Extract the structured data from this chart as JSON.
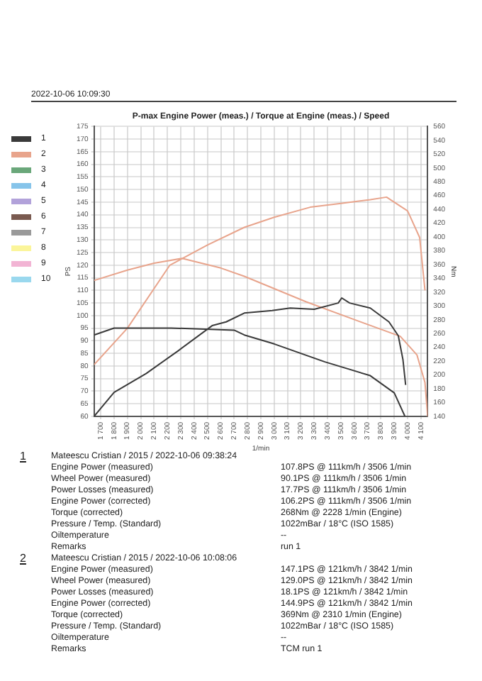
{
  "chart_data": {
    "type": "line",
    "title": "P-max Engine Power (meas.) / Torque at Engine (meas.) / Speed",
    "xlabel": "1/min",
    "ylabel": "PS",
    "y2label": "Nm",
    "xlim": [
      1650,
      4150
    ],
    "xticks": [
      {
        "value": 1700,
        "label": "1 700"
      },
      {
        "value": 1800,
        "label": "1 800"
      },
      {
        "value": 1900,
        "label": "1 900"
      },
      {
        "value": 2000,
        "label": "2 000"
      },
      {
        "value": 2100,
        "label": "2 100"
      },
      {
        "value": 2200,
        "label": "2 200"
      },
      {
        "value": 2300,
        "label": "2 300"
      },
      {
        "value": 2400,
        "label": "2 400"
      },
      {
        "value": 2500,
        "label": "2 500"
      },
      {
        "value": 2600,
        "label": "2 600"
      },
      {
        "value": 2700,
        "label": "2 700"
      },
      {
        "value": 2800,
        "label": "2 800"
      },
      {
        "value": 2900,
        "label": "2 900"
      },
      {
        "value": 3000,
        "label": "3 000"
      },
      {
        "value": 3100,
        "label": "3 100"
      },
      {
        "value": 3200,
        "label": "3 200"
      },
      {
        "value": 3300,
        "label": "3 300"
      },
      {
        "value": 3400,
        "label": "3 400"
      },
      {
        "value": 3500,
        "label": "3 500"
      },
      {
        "value": 3600,
        "label": "3 600"
      },
      {
        "value": 3700,
        "label": "3 700"
      },
      {
        "value": 3800,
        "label": "3 800"
      },
      {
        "value": 3900,
        "label": "3 900"
      },
      {
        "value": 4000,
        "label": "4 000"
      },
      {
        "value": 4100,
        "label": "4 100"
      }
    ],
    "ylim": [
      60,
      175
    ],
    "yticks": [
      60,
      65,
      70,
      75,
      80,
      85,
      90,
      95,
      100,
      105,
      110,
      115,
      120,
      125,
      130,
      135,
      140,
      145,
      150,
      155,
      160,
      165,
      170,
      175
    ],
    "y2lim": [
      140,
      560
    ],
    "y2ticks": [
      140,
      160,
      180,
      200,
      220,
      240,
      260,
      280,
      300,
      320,
      340,
      360,
      380,
      400,
      420,
      440,
      460,
      480,
      500,
      520,
      540,
      560
    ],
    "grid": true,
    "legend": "left",
    "marker": "none",
    "line_style": "solid",
    "series": [
      {
        "name": "1",
        "color": "#3a3a3a",
        "x": [
          1650,
          1800,
          2040,
          2280,
          2535,
          2640,
          2776,
          2985,
          3120,
          3300,
          3480,
          3506,
          3565,
          3720,
          3860,
          3930,
          3965,
          3985
        ],
        "values": [
          60,
          69.5,
          77,
          86,
          96,
          97.5,
          101,
          102,
          103,
          102.5,
          105,
          107,
          105,
          103,
          97.5,
          92,
          82.5,
          72.5
        ]
      },
      {
        "color": "#3a3a3a",
        "axis": "y2",
        "x": [
          1650,
          1800,
          2228,
          2700,
          2776,
          3000,
          3380,
          3720,
          3900,
          3980
        ],
        "values": [
          258,
          268,
          268,
          265,
          258,
          245,
          219,
          199,
          174,
          140
        ]
      },
      {
        "name": "2",
        "color": "#e8a48c",
        "x": [
          1650,
          1900,
          2218,
          2500,
          2776,
          3000,
          3270,
          3500,
          3720,
          3842,
          4000,
          4090,
          4130
        ],
        "values": [
          80.5,
          95,
          120,
          128,
          135,
          139,
          143,
          144.5,
          146,
          147,
          141.5,
          131,
          110
        ]
      },
      {
        "color": "#e8a48c",
        "axis": "y2",
        "x": [
          1650,
          1900,
          2100,
          2310,
          2600,
          2776,
          3240,
          3660,
          3945,
          4070,
          4130,
          4150
        ],
        "values": [
          337,
          352,
          362,
          369,
          355,
          343,
          306,
          276,
          256,
          229,
          189,
          140
        ]
      },
      {
        "name": "3",
        "color": "#6aa77a"
      },
      {
        "name": "4",
        "color": "#86c4ea"
      },
      {
        "name": "5",
        "color": "#b2a2da"
      },
      {
        "name": "6",
        "color": "#7a5a50"
      },
      {
        "name": "7",
        "color": "#9a9a9a"
      },
      {
        "name": "8",
        "color": "#fbf59a"
      },
      {
        "name": "9",
        "color": "#f2b4d4"
      },
      {
        "name": "10",
        "color": "#9ad8ee"
      }
    ],
    "annotations": [
      "2022-10-06 10:09:30",
      "1\tMateescu Cristian / 2015 / 2022-10-06 09:38:24",
      "\tEngine Power (measured)\t107.8PS @ 111km/h / 3506 1/min",
      "\tWheel Power (measured)\t90.1PS @ 111km/h / 3506 1/min",
      "\tPower Losses (measured)\t17.7PS @ 111km/h / 3506 1/min",
      "\tEngine Power (corrected)\t106.2PS @ 111km/h / 3506 1/min",
      "\tTorque (corrected)\t268Nm @ 2228 1/min (Engine)",
      "\tPressure / Temp. (Standard)\t1022mBar / 18°C   (ISO 1585)",
      "\tOiltemperature\t--",
      "\tRemarks\trun 1",
      "2\tMateescu Cristian / 2015 / 2022-10-06 10:08:06",
      "\tEngine Power (measured)\t147.1PS @ 121km/h / 3842 1/min",
      "\tWheel Power (measured)\t129.0PS @ 121km/h / 3842 1/min",
      "\tPower Losses (measured)\t18.1PS @ 121km/h / 3842 1/min",
      "\tEngine Power (corrected)\t144.9PS @ 121km/h / 3842 1/min",
      "\tTorque (corrected)\t369Nm @ 2310 1/min (Engine)",
      "\tPressure / Temp. (Standard)\t1022mBar / 18°C   (ISO 1585)",
      "\tOiltemperature\t--",
      "\tRemarks\tTCM run 1"
    ]
  }
}
